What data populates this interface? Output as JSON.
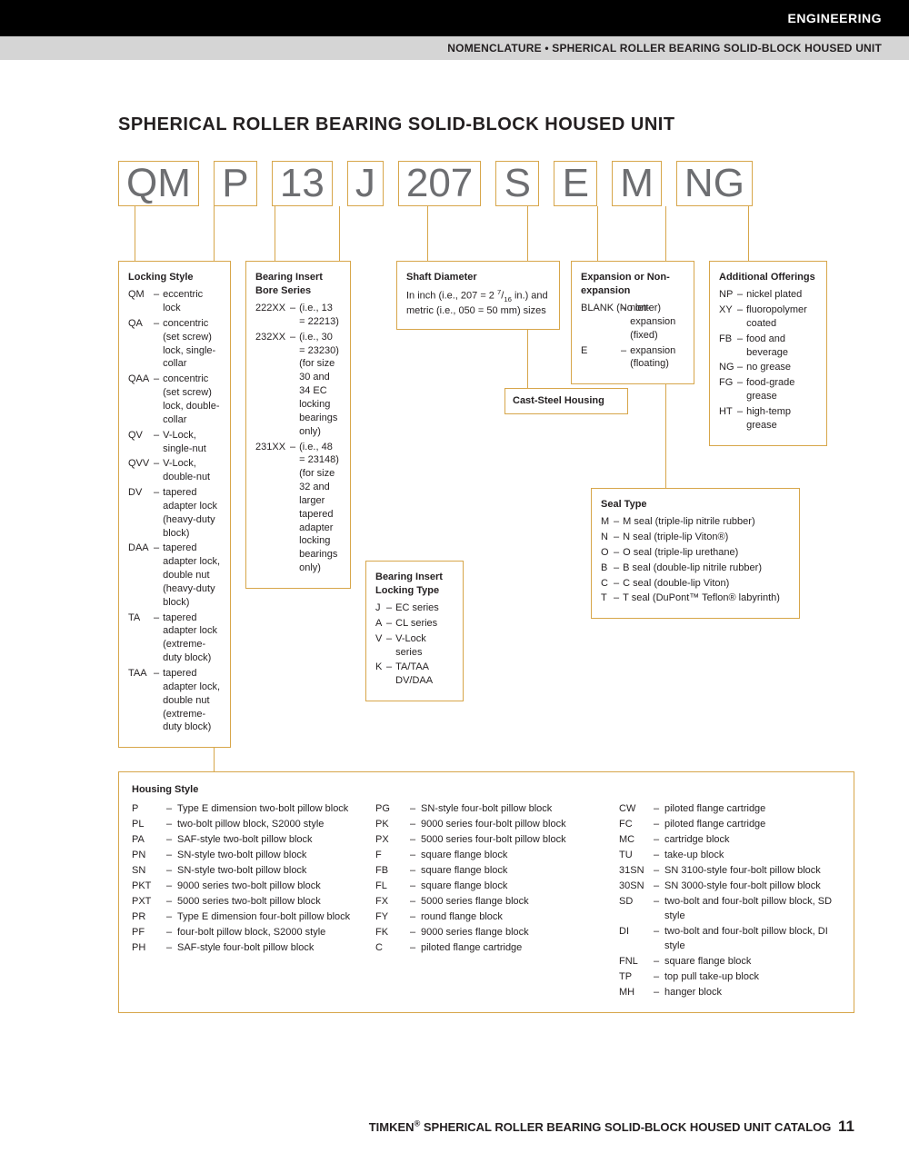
{
  "header": {
    "category": "ENGINEERING",
    "subtitle": "NOMENCLATURE • SPHERICAL ROLLER BEARING SOLID-BLOCK HOUSED UNIT"
  },
  "title": "SPHERICAL ROLLER BEARING SOLID-BLOCK HOUSED UNIT",
  "code_segments": [
    "QM",
    "P",
    "13",
    "J",
    "207",
    "S",
    "E",
    "M",
    "NG"
  ],
  "colors": {
    "box_border": "#d7a64a",
    "code_text": "#6d6e71",
    "body_text": "#231f20",
    "topbar_bg": "#000000",
    "graybar_bg": "#d5d5d5"
  },
  "locking_style": {
    "title": "Locking Style",
    "items": [
      {
        "code": "QM",
        "desc": "eccentric lock"
      },
      {
        "code": "QA",
        "desc": "concentric (set screw) lock, single-collar"
      },
      {
        "code": "QAA",
        "desc": "concentric (set screw) lock, double-collar"
      },
      {
        "code": "QV",
        "desc": "V-Lock, single-nut"
      },
      {
        "code": "QVV",
        "desc": "V-Lock, double-nut"
      },
      {
        "code": "DV",
        "desc": "tapered adapter lock (heavy-duty block)"
      },
      {
        "code": "DAA",
        "desc": "tapered adapter lock, double nut (heavy-duty block)"
      },
      {
        "code": "TA",
        "desc": "tapered adapter lock (extreme-duty block)"
      },
      {
        "code": "TAA",
        "desc": "tapered adapter lock, double nut (extreme-duty block)"
      }
    ]
  },
  "bore_series": {
    "title": "Bearing Insert Bore Series",
    "items": [
      {
        "code": "222XX",
        "desc": "(i.e., 13 = 22213)"
      },
      {
        "code": "232XX",
        "desc": "(i.e., 30 = 23230) (for size 30 and 34 EC locking bearings only)"
      },
      {
        "code": "231XX",
        "desc": "(i.e., 48 = 23148) (for size 32 and larger tapered adapter locking bearings only)"
      }
    ]
  },
  "locking_type": {
    "title": "Bearing Insert Locking Type",
    "items": [
      {
        "code": "J",
        "desc": "EC series"
      },
      {
        "code": "A",
        "desc": "CL series"
      },
      {
        "code": "V",
        "desc": "V-Lock series"
      },
      {
        "code": "K",
        "desc": "TA/TAA DV/DAA"
      }
    ]
  },
  "shaft_diameter": {
    "title": "Shaft Diameter",
    "desc1": "In inch (i.e., 207 = 2 ",
    "frac_num": "7",
    "frac_den": "16",
    "desc2": " in.) and metric (i.e., 050 = 50 mm) sizes"
  },
  "cast_steel": "Cast-Steel Housing",
  "expansion": {
    "title": "Expansion or Non-expansion",
    "items": [
      {
        "code": "BLANK (No letter)",
        "desc": "non-expansion (fixed)"
      },
      {
        "code": "E",
        "desc": "expansion (floating)"
      }
    ]
  },
  "seal_type": {
    "title": "Seal Type",
    "items": [
      {
        "code": "M",
        "desc": "M seal (triple-lip nitrile rubber)"
      },
      {
        "code": "N",
        "desc": "N seal (triple-lip Viton®)"
      },
      {
        "code": "O",
        "desc": "O seal (triple-lip urethane)"
      },
      {
        "code": "B",
        "desc": "B seal (double-lip nitrile rubber)"
      },
      {
        "code": "C",
        "desc": "C seal (double-lip Viton)"
      },
      {
        "code": "T",
        "desc": "T seal (DuPont™ Teflon® labyrinth)"
      }
    ]
  },
  "additional": {
    "title": "Additional Offerings",
    "items": [
      {
        "code": "NP",
        "desc": "nickel plated"
      },
      {
        "code": "XY",
        "desc": "fluoropolymer coated"
      },
      {
        "code": "FB",
        "desc": "food and beverage"
      },
      {
        "code": "NG",
        "desc": "no grease"
      },
      {
        "code": "FG",
        "desc": "food-grade grease"
      },
      {
        "code": "HT",
        "desc": "high-temp grease"
      }
    ]
  },
  "housing": {
    "title": "Housing Style",
    "col1": [
      {
        "code": "P",
        "desc": "Type E dimension two-bolt pillow block"
      },
      {
        "code": "PL",
        "desc": "two-bolt pillow block, S2000 style"
      },
      {
        "code": "PA",
        "desc": "SAF-style two-bolt pillow block"
      },
      {
        "code": "PN",
        "desc": "SN-style two-bolt pillow block"
      },
      {
        "code": "SN",
        "desc": "SN-style two-bolt pillow block"
      },
      {
        "code": "PKT",
        "desc": "9000 series two-bolt pillow block"
      },
      {
        "code": "PXT",
        "desc": "5000 series two-bolt pillow block"
      },
      {
        "code": "PR",
        "desc": "Type E dimension four-bolt pillow block"
      },
      {
        "code": "PF",
        "desc": "four-bolt pillow block, S2000 style"
      },
      {
        "code": "PH",
        "desc": "SAF-style four-bolt pillow block"
      }
    ],
    "col2": [
      {
        "code": "PG",
        "desc": "SN-style four-bolt pillow block"
      },
      {
        "code": "PK",
        "desc": "9000 series four-bolt pillow block"
      },
      {
        "code": "PX",
        "desc": "5000 series four-bolt pillow block"
      },
      {
        "code": "F",
        "desc": "square flange block"
      },
      {
        "code": "FB",
        "desc": "square flange block"
      },
      {
        "code": "FL",
        "desc": "square flange block"
      },
      {
        "code": "FX",
        "desc": "5000 series flange block"
      },
      {
        "code": "FY",
        "desc": "round flange block"
      },
      {
        "code": "FK",
        "desc": "9000 series flange block"
      },
      {
        "code": "C",
        "desc": "piloted flange cartridge"
      }
    ],
    "col3": [
      {
        "code": "CW",
        "desc": "piloted flange cartridge"
      },
      {
        "code": "FC",
        "desc": "piloted flange cartridge"
      },
      {
        "code": "MC",
        "desc": "cartridge block"
      },
      {
        "code": "TU",
        "desc": "take-up block"
      },
      {
        "code": "31SN",
        "desc": "SN 3100-style four-bolt pillow block"
      },
      {
        "code": "30SN",
        "desc": "SN 3000-style four-bolt pillow block"
      },
      {
        "code": "SD",
        "desc": "two-bolt and four-bolt pillow block, SD style"
      },
      {
        "code": "DI",
        "desc": "two-bolt and four-bolt pillow block, DI style"
      },
      {
        "code": "FNL",
        "desc": "square flange block"
      },
      {
        "code": "TP",
        "desc": "top pull take-up block"
      },
      {
        "code": "MH",
        "desc": "hanger block"
      }
    ]
  },
  "footer": {
    "brand": "TIMKEN",
    "reg": "®",
    "text": " SPHERICAL ROLLER BEARING SOLID-BLOCK HOUSED UNIT CATALOG",
    "page": "11"
  }
}
